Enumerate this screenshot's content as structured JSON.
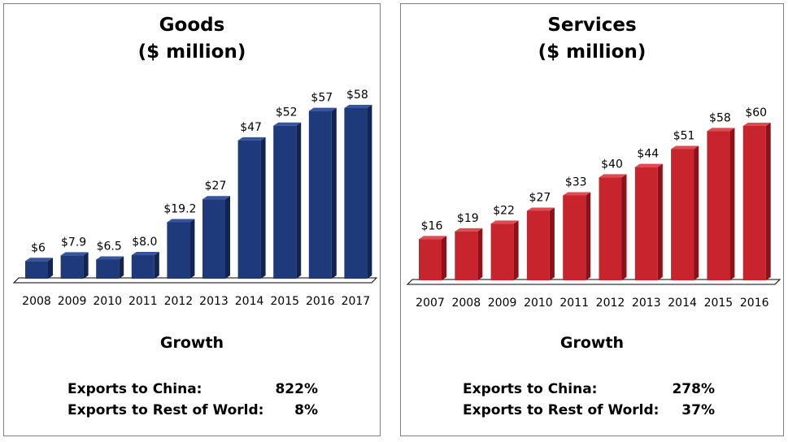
{
  "panels": [
    {
      "title_line1": "Goods",
      "title_line2": "($ million)",
      "growth_heading": "Growth",
      "growth": [
        {
          "label": "Exports to China:",
          "value": "822%"
        },
        {
          "label": "Exports to Rest of World:",
          "value": "8%"
        }
      ]
    },
    {
      "title_line1": "Services",
      "title_line2": "($ million)",
      "growth_heading": "Growth",
      "growth": [
        {
          "label": "Exports to China:",
          "value": "278%"
        },
        {
          "label": "Exports to Rest of World:",
          "value": "37%"
        }
      ]
    }
  ],
  "chart_data": [
    {
      "type": "bar",
      "title": "Goods ($ million)",
      "categories": [
        "2008",
        "2009",
        "2010",
        "2011",
        "2012",
        "2013",
        "2014",
        "2015",
        "2016",
        "2017"
      ],
      "values": [
        6,
        7.9,
        6.5,
        8.0,
        19.2,
        27,
        47,
        52,
        57,
        58
      ],
      "data_labels": [
        "$6",
        "$7.9",
        "$6.5",
        "$8.0",
        "$19.2",
        "$27",
        "$47",
        "$52",
        "$57",
        "$58"
      ],
      "ylim": [
        0,
        58
      ],
      "colors": {
        "bar": "#1f3a7a",
        "bar_side": "#13244f",
        "bar_top": "#3555a0"
      }
    },
    {
      "type": "bar",
      "title": "Services ($ million)",
      "categories": [
        "2007",
        "2008",
        "2009",
        "2010",
        "2011",
        "2012",
        "2013",
        "2014",
        "2015",
        "2016"
      ],
      "values": [
        16,
        19,
        22,
        27,
        33,
        40,
        44,
        51,
        58,
        60
      ],
      "data_labels": [
        "$16",
        "$19",
        "$22",
        "$27",
        "$33",
        "$40",
        "$44",
        "$51",
        "$58",
        "$60"
      ],
      "ylim": [
        0,
        60
      ],
      "colors": {
        "bar": "#c8242e",
        "bar_side": "#8c1219",
        "bar_top": "#e04a52"
      }
    }
  ]
}
